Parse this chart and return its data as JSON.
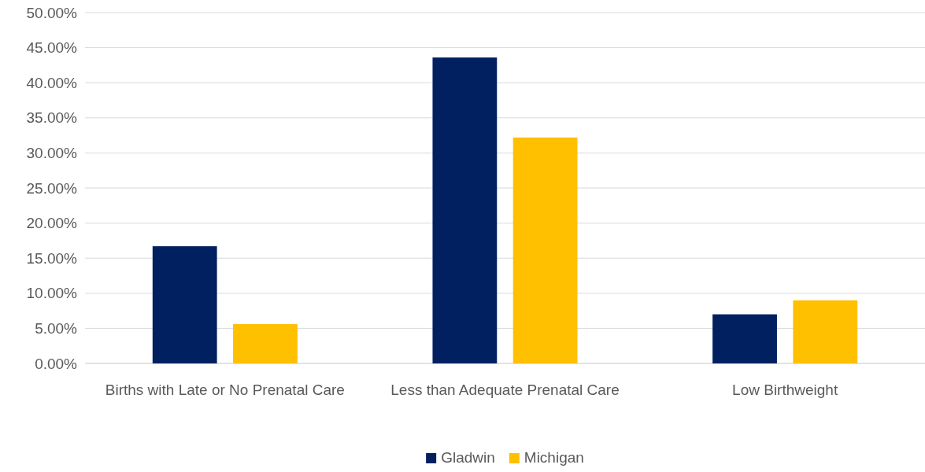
{
  "chart_data": {
    "type": "bar",
    "categories": [
      "Births with Late or No Prenatal Care",
      "Less than Adequate Prenatal Care",
      "Low Birthweight"
    ],
    "series": [
      {
        "name": "Gladwin",
        "color": "#002060",
        "values": [
          16.7,
          43.6,
          7.0
        ]
      },
      {
        "name": "Michigan",
        "color": "#ffc000",
        "values": [
          5.6,
          32.2,
          9.0
        ]
      }
    ],
    "ylim": [
      0,
      50
    ],
    "yticks": [
      {
        "value": 0,
        "label": "0.00%"
      },
      {
        "value": 5,
        "label": "5.00%"
      },
      {
        "value": 10,
        "label": "10.00%"
      },
      {
        "value": 15,
        "label": "15.00%"
      },
      {
        "value": 20,
        "label": "20.00%"
      },
      {
        "value": 25,
        "label": "25.00%"
      },
      {
        "value": 30,
        "label": "30.00%"
      },
      {
        "value": 35,
        "label": "35.00%"
      },
      {
        "value": 40,
        "label": "40.00%"
      },
      {
        "value": 45,
        "label": "45.00%"
      },
      {
        "value": 50,
        "label": "50.00%"
      }
    ],
    "grid": "y",
    "legend": "bottom"
  }
}
